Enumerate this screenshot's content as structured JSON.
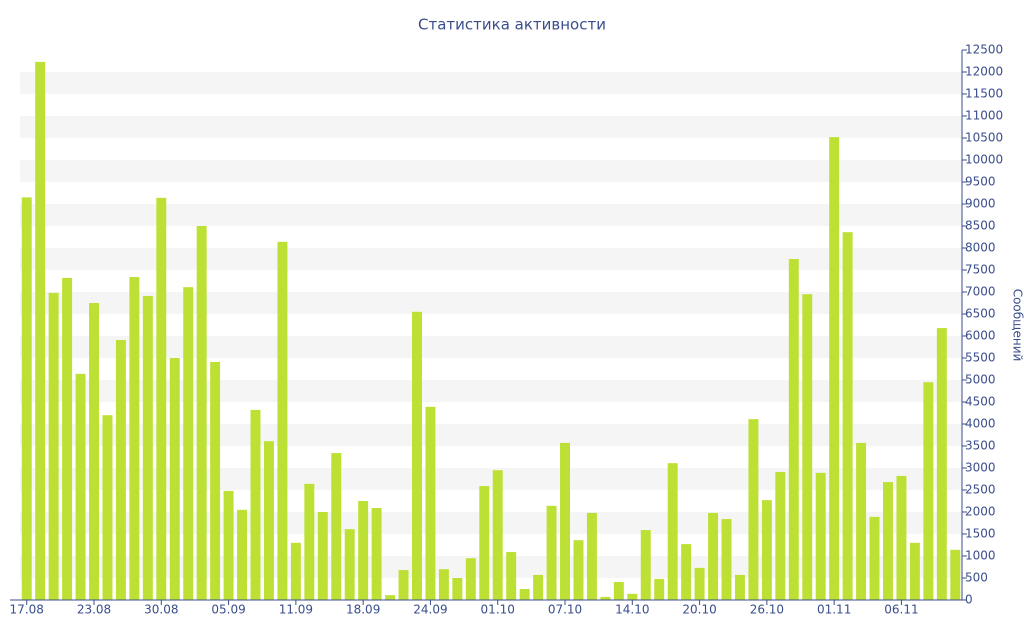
{
  "chart_data": {
    "type": "bar",
    "title": "Статистика активности",
    "y_axis_label": "Сообщений",
    "categories": [
      "17.08",
      null,
      null,
      null,
      null,
      "23.08",
      null,
      null,
      null,
      null,
      "30.08",
      null,
      null,
      null,
      null,
      "05.09",
      null,
      null,
      null,
      null,
      "11.09",
      null,
      null,
      null,
      null,
      "18.09",
      null,
      null,
      null,
      null,
      "24.09",
      null,
      null,
      null,
      null,
      "01.10",
      null,
      null,
      null,
      null,
      "07.10",
      null,
      null,
      null,
      null,
      "14.10",
      null,
      null,
      null,
      null,
      "20.10",
      null,
      null,
      null,
      null,
      "26.10",
      null,
      null,
      null,
      null,
      "01.11",
      null,
      null,
      null,
      null,
      "06.11",
      null,
      null,
      null,
      null
    ],
    "values": [
      9150,
      12230,
      6980,
      7320,
      5140,
      6750,
      4200,
      5910,
      7340,
      6910,
      9140,
      5500,
      7110,
      8500,
      5410,
      2480,
      2050,
      4320,
      3610,
      8140,
      1300,
      2640,
      2000,
      3340,
      1610,
      2250,
      2090,
      110,
      680,
      6550,
      4390,
      700,
      500,
      950,
      2590,
      2950,
      1090,
      250,
      570,
      2140,
      3570,
      1360,
      1980,
      70,
      410,
      140,
      1590,
      480,
      3110,
      1270,
      730,
      1980,
      1840,
      570,
      4110,
      2270,
      2910,
      7750,
      6950,
      2890,
      10520,
      8360,
      3570,
      1890,
      2680,
      2820,
      1300,
      4950,
      6180,
      1140
    ],
    "color": "#bde035",
    "ylim": [
      0,
      12500
    ],
    "yticks": [
      0,
      500,
      1000,
      1500,
      2000,
      2500,
      3000,
      3500,
      4000,
      4500,
      5000,
      5500,
      6000,
      6500,
      7000,
      7500,
      8000,
      8500,
      9000,
      9500,
      10000,
      10500,
      11000,
      11500,
      12000,
      12500
    ],
    "grid": true
  }
}
